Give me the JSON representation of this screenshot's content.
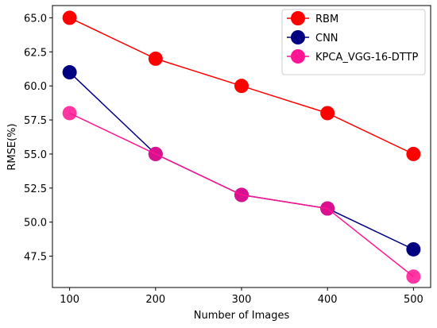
{
  "chart_data": {
    "type": "line",
    "title": "",
    "xlabel": "Number of Images",
    "ylabel": "RMSE(%)",
    "x": [
      100,
      200,
      300,
      400,
      500
    ],
    "x_ticks": [
      "100",
      "200",
      "300",
      "400",
      "500"
    ],
    "y_ticks": [
      "47.5",
      "50.0",
      "52.5",
      "55.0",
      "57.5",
      "60.0",
      "62.5",
      "65.0"
    ],
    "xlim": [
      80,
      520
    ],
    "ylim": [
      45.2,
      65.9
    ],
    "grid": false,
    "legend_position": "top-right",
    "series": [
      {
        "name": "RBM",
        "color": "#ff0000",
        "values": [
          65.0,
          62.0,
          60.0,
          58.0,
          55.0
        ]
      },
      {
        "name": "CNN",
        "color": "#000080",
        "values": [
          61.0,
          55.0,
          52.0,
          51.0,
          48.0
        ]
      },
      {
        "name": "KPCA_VGG-16-DTTP",
        "color": "#ff1493",
        "values": [
          58.0,
          55.0,
          52.0,
          51.0,
          46.0
        ]
      }
    ]
  }
}
